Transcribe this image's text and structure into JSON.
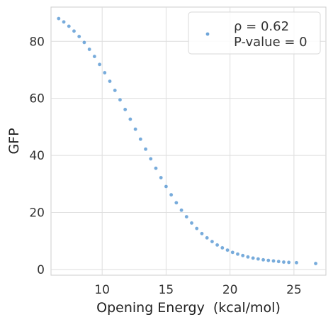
{
  "chart_data": {
    "type": "scatter",
    "xlabel": "Opening Energy",
    "xlabel_unit": "(kcal/mol)",
    "ylabel": "GFP",
    "xlim": [
      6,
      27.5
    ],
    "ylim": [
      -2,
      92
    ],
    "xticks": [
      "10",
      "15",
      "20",
      "25"
    ],
    "yticks": [
      "0",
      "20",
      "40",
      "60",
      "80"
    ],
    "grid": true,
    "legend": {
      "position": "top-right",
      "entries": [
        "ρ = 0.62",
        "P-value = 0"
      ]
    },
    "series": [
      {
        "color": "#4a8fcf",
        "x": [
          6.6,
          7.0,
          7.4,
          7.8,
          8.2,
          8.6,
          9.0,
          9.4,
          9.8,
          10.2,
          10.6,
          11.0,
          11.4,
          11.8,
          12.2,
          12.6,
          13.0,
          13.4,
          13.8,
          14.2,
          14.6,
          15.0,
          15.4,
          15.8,
          16.2,
          16.6,
          17.0,
          17.4,
          17.8,
          18.2,
          18.6,
          19.0,
          19.4,
          19.8,
          20.2,
          20.6,
          21.0,
          21.4,
          21.8,
          22.2,
          22.6,
          23.0,
          23.4,
          23.8,
          24.2,
          24.6,
          25.2,
          26.7
        ],
        "y": [
          88.0,
          86.8,
          85.3,
          83.6,
          81.7,
          79.6,
          77.2,
          74.7,
          71.9,
          69.0,
          66.0,
          62.8,
          59.5,
          56.1,
          52.7,
          49.2,
          45.7,
          42.2,
          38.8,
          35.5,
          32.2,
          29.1,
          26.2,
          23.4,
          20.8,
          18.5,
          16.3,
          14.4,
          12.6,
          11.1,
          9.8,
          8.6,
          7.6,
          6.8,
          6.0,
          5.4,
          4.9,
          4.4,
          4.0,
          3.7,
          3.4,
          3.2,
          3.0,
          2.8,
          2.6,
          2.5,
          2.4,
          2.1
        ]
      }
    ]
  }
}
